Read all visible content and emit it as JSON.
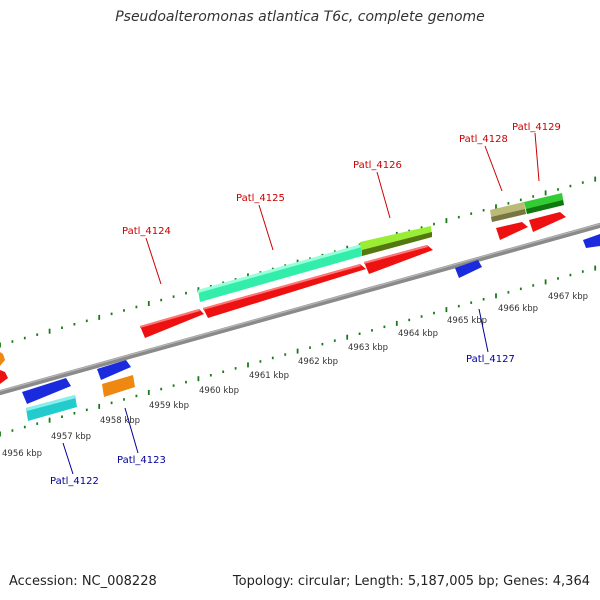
{
  "title": "Pseudoalteromonas atlantica T6c, complete genome",
  "footer": {
    "accession": "Accession: NC_008228",
    "summary": "Topology: circular; Length: 5,187,005 bp; Genes: 4,364"
  },
  "colors": {
    "backbone": "#8a8a8a",
    "tick": "#1a7a1a",
    "label_forward": "#cc0000",
    "label_reverse": "#000099",
    "red": "#ee1111",
    "blue": "#1a2bdd",
    "orange": "#ee8811",
    "cyan": "#22cccc",
    "green": "#33cc33",
    "aquamarine": "#33eeaa",
    "lime": "#99ee33",
    "khaki": "#bbbb77"
  },
  "scale_labels": [
    {
      "text": "4956 kbp",
      "kbp": 4956
    },
    {
      "text": "4957 kbp",
      "kbp": 4957
    },
    {
      "text": "4958 kbp",
      "kbp": 4958
    },
    {
      "text": "4959 kbp",
      "kbp": 4959
    },
    {
      "text": "4960 kbp",
      "kbp": 4960
    },
    {
      "text": "4961 kbp",
      "kbp": 4961
    },
    {
      "text": "4962 kbp",
      "kbp": 4962
    },
    {
      "text": "4963 kbp",
      "kbp": 4963
    },
    {
      "text": "4964 kbp",
      "kbp": 4964
    },
    {
      "text": "4965 kbp",
      "kbp": 4965
    },
    {
      "text": "4966 kbp",
      "kbp": 4966
    },
    {
      "text": "4967 kbp",
      "kbp": 4967
    }
  ],
  "gene_labels": [
    {
      "text": "Patl_4122",
      "strand": "reverse"
    },
    {
      "text": "Patl_4123",
      "strand": "reverse"
    },
    {
      "text": "Patl_4124",
      "strand": "forward"
    },
    {
      "text": "Patl_4125",
      "strand": "forward"
    },
    {
      "text": "Patl_4126",
      "strand": "forward"
    },
    {
      "text": "Patl_4127",
      "strand": "reverse"
    },
    {
      "text": "Patl_4128",
      "strand": "forward"
    },
    {
      "text": "Patl_4129",
      "strand": "forward"
    }
  ]
}
